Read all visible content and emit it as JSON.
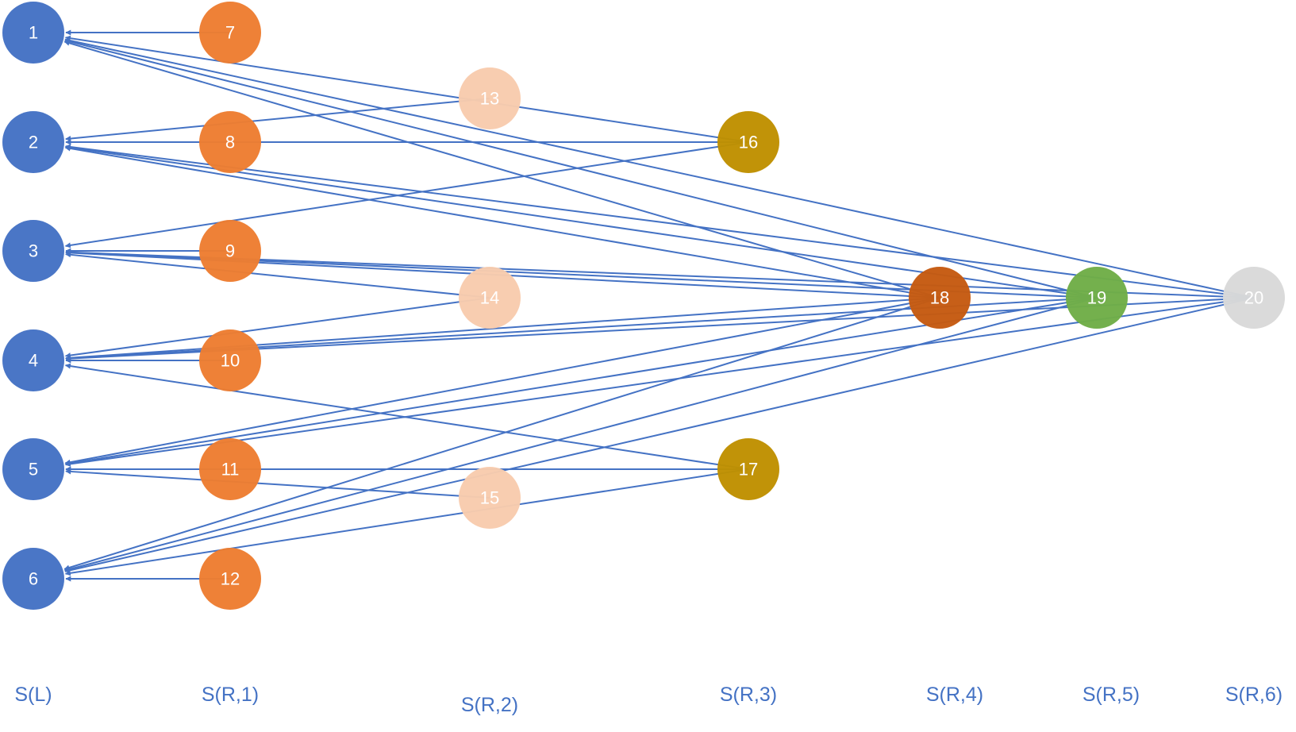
{
  "colors": {
    "edge": "#4472C4",
    "label": "#4472C4",
    "node_text": "#ffffff"
  },
  "layers": [
    {
      "id": "L",
      "label": "S(L)"
    },
    {
      "id": "R1",
      "label": "S(R,1)"
    },
    {
      "id": "R2",
      "label": "S(R,2)"
    },
    {
      "id": "R3",
      "label": "S(R,3)"
    },
    {
      "id": "R4",
      "label": "S(R,4)"
    },
    {
      "id": "R5",
      "label": "S(R,5)"
    },
    {
      "id": "R6",
      "label": "S(R,6)"
    }
  ],
  "nodes": [
    {
      "id": "1",
      "label": "1",
      "layer": "L",
      "color": "#4472C4"
    },
    {
      "id": "2",
      "label": "2",
      "layer": "L",
      "color": "#4472C4"
    },
    {
      "id": "3",
      "label": "3",
      "layer": "L",
      "color": "#4472C4"
    },
    {
      "id": "4",
      "label": "4",
      "layer": "L",
      "color": "#4472C4"
    },
    {
      "id": "5",
      "label": "5",
      "layer": "L",
      "color": "#4472C4"
    },
    {
      "id": "6",
      "label": "6",
      "layer": "L",
      "color": "#4472C4"
    },
    {
      "id": "7",
      "label": "7",
      "layer": "R1",
      "color": "#ED7D31"
    },
    {
      "id": "8",
      "label": "8",
      "layer": "R1",
      "color": "#ED7D31"
    },
    {
      "id": "9",
      "label": "9",
      "layer": "R1",
      "color": "#ED7D31"
    },
    {
      "id": "10",
      "label": "10",
      "layer": "R1",
      "color": "#ED7D31"
    },
    {
      "id": "11",
      "label": "11",
      "layer": "R1",
      "color": "#ED7D31"
    },
    {
      "id": "12",
      "label": "12",
      "layer": "R1",
      "color": "#ED7D31"
    },
    {
      "id": "13",
      "label": "13",
      "layer": "R2",
      "color": "#F8CBAD"
    },
    {
      "id": "14",
      "label": "14",
      "layer": "R2",
      "color": "#F8CBAD"
    },
    {
      "id": "15",
      "label": "15",
      "layer": "R2",
      "color": "#F8CBAD"
    },
    {
      "id": "16",
      "label": "16",
      "layer": "R3",
      "color": "#BF9000"
    },
    {
      "id": "17",
      "label": "17",
      "layer": "R3",
      "color": "#BF9000"
    },
    {
      "id": "18",
      "label": "18",
      "layer": "R4",
      "color": "#C55A11"
    },
    {
      "id": "19",
      "label": "19",
      "layer": "R5",
      "color": "#70AD47"
    },
    {
      "id": "20",
      "label": "20",
      "layer": "R6",
      "color": "#D9D9D9"
    }
  ],
  "edges": [
    [
      "7",
      "1"
    ],
    [
      "8",
      "2"
    ],
    [
      "9",
      "3"
    ],
    [
      "10",
      "4"
    ],
    [
      "11",
      "5"
    ],
    [
      "12",
      "6"
    ],
    [
      "13",
      "2"
    ],
    [
      "14",
      "3"
    ],
    [
      "14",
      "4"
    ],
    [
      "15",
      "5"
    ],
    [
      "16",
      "1"
    ],
    [
      "16",
      "2"
    ],
    [
      "16",
      "3"
    ],
    [
      "17",
      "4"
    ],
    [
      "17",
      "5"
    ],
    [
      "17",
      "6"
    ],
    [
      "18",
      "1"
    ],
    [
      "18",
      "2"
    ],
    [
      "18",
      "3"
    ],
    [
      "18",
      "4"
    ],
    [
      "18",
      "5"
    ],
    [
      "18",
      "6"
    ],
    [
      "19",
      "1"
    ],
    [
      "19",
      "2"
    ],
    [
      "19",
      "3"
    ],
    [
      "19",
      "4"
    ],
    [
      "19",
      "5"
    ],
    [
      "19",
      "6"
    ],
    [
      "20",
      "1"
    ],
    [
      "20",
      "2"
    ],
    [
      "20",
      "3"
    ],
    [
      "20",
      "4"
    ],
    [
      "20",
      "5"
    ],
    [
      "20",
      "6"
    ]
  ]
}
